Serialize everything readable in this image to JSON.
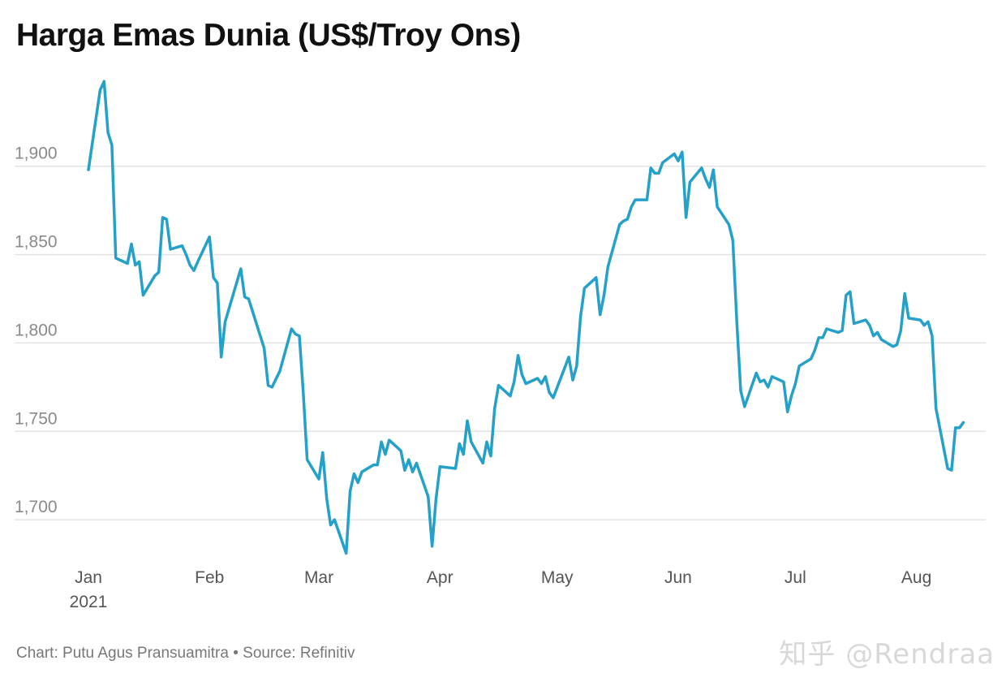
{
  "title": "Harga Emas Dunia (US$/Troy Ons)",
  "footer": {
    "credit": "Chart: Putu Agus Pransuamitra",
    "separator": "•",
    "source": "Source: Refinitiv"
  },
  "watermark": "知乎 @Rendraa",
  "chart_data": {
    "type": "line",
    "title": "Harga Emas Dunia (US$/Troy Ons)",
    "xlabel": "",
    "ylabel": "",
    "ylim": [
      1678,
      1955
    ],
    "yticks": [
      1700,
      1750,
      1800,
      1850,
      1900
    ],
    "ytick_labels": [
      "1,700",
      "1,750",
      "1,800",
      "1,850",
      "1,900"
    ],
    "xlim": [
      "2021-01-01",
      "2021-08-15"
    ],
    "xticks": [
      {
        "date": "2021-01-01",
        "label": "Jan",
        "sublabel": "2021"
      },
      {
        "date": "2021-02-01",
        "label": "Feb",
        "sublabel": ""
      },
      {
        "date": "2021-03-01",
        "label": "Mar",
        "sublabel": ""
      },
      {
        "date": "2021-04-01",
        "label": "Apr",
        "sublabel": ""
      },
      {
        "date": "2021-05-01",
        "label": "May",
        "sublabel": ""
      },
      {
        "date": "2021-06-01",
        "label": "Jun",
        "sublabel": ""
      },
      {
        "date": "2021-07-01",
        "label": "Jul",
        "sublabel": ""
      },
      {
        "date": "2021-08-01",
        "label": "Aug",
        "sublabel": ""
      }
    ],
    "grid": true,
    "line_color": "#24a0c9",
    "series": [
      {
        "name": "",
        "points": [
          [
            "2021-01-01",
            1898
          ],
          [
            "2021-01-04",
            1943
          ],
          [
            "2021-01-05",
            1948
          ],
          [
            "2021-01-06",
            1919
          ],
          [
            "2021-01-07",
            1912
          ],
          [
            "2021-01-08",
            1848
          ],
          [
            "2021-01-11",
            1845
          ],
          [
            "2021-01-12",
            1856
          ],
          [
            "2021-01-13",
            1844
          ],
          [
            "2021-01-14",
            1846
          ],
          [
            "2021-01-15",
            1827
          ],
          [
            "2021-01-18",
            1838
          ],
          [
            "2021-01-19",
            1840
          ],
          [
            "2021-01-20",
            1871
          ],
          [
            "2021-01-21",
            1870
          ],
          [
            "2021-01-22",
            1853
          ],
          [
            "2021-01-25",
            1855
          ],
          [
            "2021-01-26",
            1850
          ],
          [
            "2021-01-27",
            1844
          ],
          [
            "2021-01-28",
            1841
          ],
          [
            "2021-01-29",
            1846
          ],
          [
            "2021-02-01",
            1860
          ],
          [
            "2021-02-02",
            1837
          ],
          [
            "2021-02-03",
            1834
          ],
          [
            "2021-02-04",
            1792
          ],
          [
            "2021-02-05",
            1812
          ],
          [
            "2021-02-09",
            1842
          ],
          [
            "2021-02-10",
            1826
          ],
          [
            "2021-02-11",
            1825
          ],
          [
            "2021-02-12",
            1818
          ],
          [
            "2021-02-15",
            1797
          ],
          [
            "2021-02-16",
            1776
          ],
          [
            "2021-02-17",
            1775
          ],
          [
            "2021-02-19",
            1784
          ],
          [
            "2021-02-22",
            1808
          ],
          [
            "2021-02-23",
            1805
          ],
          [
            "2021-02-24",
            1804
          ],
          [
            "2021-02-25",
            1772
          ],
          [
            "2021-02-26",
            1734
          ],
          [
            "2021-03-01",
            1723
          ],
          [
            "2021-03-02",
            1738
          ],
          [
            "2021-03-03",
            1712
          ],
          [
            "2021-03-04",
            1697
          ],
          [
            "2021-03-05",
            1700
          ],
          [
            "2021-03-08",
            1681
          ],
          [
            "2021-03-09",
            1716
          ],
          [
            "2021-03-10",
            1726
          ],
          [
            "2021-03-11",
            1721
          ],
          [
            "2021-03-12",
            1727
          ],
          [
            "2021-03-15",
            1731
          ],
          [
            "2021-03-16",
            1731
          ],
          [
            "2021-03-17",
            1744
          ],
          [
            "2021-03-18",
            1737
          ],
          [
            "2021-03-19",
            1745
          ],
          [
            "2021-03-22",
            1739
          ],
          [
            "2021-03-23",
            1728
          ],
          [
            "2021-03-24",
            1734
          ],
          [
            "2021-03-25",
            1727
          ],
          [
            "2021-03-26",
            1732
          ],
          [
            "2021-03-29",
            1713
          ],
          [
            "2021-03-30",
            1685
          ],
          [
            "2021-03-31",
            1712
          ],
          [
            "2021-04-01",
            1730
          ],
          [
            "2021-04-05",
            1729
          ],
          [
            "2021-04-06",
            1743
          ],
          [
            "2021-04-07",
            1737
          ],
          [
            "2021-04-08",
            1756
          ],
          [
            "2021-04-09",
            1744
          ],
          [
            "2021-04-12",
            1732
          ],
          [
            "2021-04-13",
            1744
          ],
          [
            "2021-04-14",
            1736
          ],
          [
            "2021-04-15",
            1763
          ],
          [
            "2021-04-16",
            1776
          ],
          [
            "2021-04-19",
            1770
          ],
          [
            "2021-04-20",
            1778
          ],
          [
            "2021-04-21",
            1793
          ],
          [
            "2021-04-22",
            1782
          ],
          [
            "2021-04-23",
            1777
          ],
          [
            "2021-04-26",
            1780
          ],
          [
            "2021-04-27",
            1777
          ],
          [
            "2021-04-28",
            1781
          ],
          [
            "2021-04-29",
            1772
          ],
          [
            "2021-04-30",
            1769
          ],
          [
            "2021-05-04",
            1792
          ],
          [
            "2021-05-05",
            1779
          ],
          [
            "2021-05-06",
            1787
          ],
          [
            "2021-05-07",
            1815
          ],
          [
            "2021-05-08",
            1831
          ],
          [
            "2021-05-11",
            1837
          ],
          [
            "2021-05-12",
            1816
          ],
          [
            "2021-05-13",
            1827
          ],
          [
            "2021-05-14",
            1843
          ],
          [
            "2021-05-17",
            1867
          ],
          [
            "2021-05-18",
            1869
          ],
          [
            "2021-05-19",
            1870
          ],
          [
            "2021-05-20",
            1877
          ],
          [
            "2021-05-21",
            1881
          ],
          [
            "2021-05-24",
            1881
          ],
          [
            "2021-05-25",
            1899
          ],
          [
            "2021-05-26",
            1896
          ],
          [
            "2021-05-27",
            1896
          ],
          [
            "2021-05-28",
            1902
          ],
          [
            "2021-05-31",
            1907
          ],
          [
            "2021-06-01",
            1903
          ],
          [
            "2021-06-02",
            1908
          ],
          [
            "2021-06-03",
            1871
          ],
          [
            "2021-06-04",
            1891
          ],
          [
            "2021-06-07",
            1899
          ],
          [
            "2021-06-08",
            1893
          ],
          [
            "2021-06-09",
            1888
          ],
          [
            "2021-06-10",
            1898
          ],
          [
            "2021-06-11",
            1877
          ],
          [
            "2021-06-14",
            1867
          ],
          [
            "2021-06-15",
            1858
          ],
          [
            "2021-06-16",
            1812
          ],
          [
            "2021-06-17",
            1773
          ],
          [
            "2021-06-18",
            1764
          ],
          [
            "2021-06-21",
            1783
          ],
          [
            "2021-06-22",
            1778
          ],
          [
            "2021-06-23",
            1779
          ],
          [
            "2021-06-24",
            1775
          ],
          [
            "2021-06-25",
            1781
          ],
          [
            "2021-06-28",
            1778
          ],
          [
            "2021-06-29",
            1761
          ],
          [
            "2021-06-30",
            1770
          ],
          [
            "2021-07-01",
            1777
          ],
          [
            "2021-07-02",
            1787
          ],
          [
            "2021-07-05",
            1791
          ],
          [
            "2021-07-06",
            1796
          ],
          [
            "2021-07-07",
            1803
          ],
          [
            "2021-07-08",
            1803
          ],
          [
            "2021-07-09",
            1808
          ],
          [
            "2021-07-12",
            1806
          ],
          [
            "2021-07-13",
            1807
          ],
          [
            "2021-07-14",
            1827
          ],
          [
            "2021-07-15",
            1829
          ],
          [
            "2021-07-16",
            1811
          ],
          [
            "2021-07-19",
            1813
          ],
          [
            "2021-07-20",
            1810
          ],
          [
            "2021-07-21",
            1804
          ],
          [
            "2021-07-22",
            1806
          ],
          [
            "2021-07-23",
            1802
          ],
          [
            "2021-07-26",
            1798
          ],
          [
            "2021-07-27",
            1799
          ],
          [
            "2021-07-28",
            1807
          ],
          [
            "2021-07-29",
            1828
          ],
          [
            "2021-07-30",
            1814
          ],
          [
            "2021-08-02",
            1813
          ],
          [
            "2021-08-03",
            1810
          ],
          [
            "2021-08-04",
            1812
          ],
          [
            "2021-08-05",
            1804
          ],
          [
            "2021-08-06",
            1763
          ],
          [
            "2021-08-09",
            1729
          ],
          [
            "2021-08-10",
            1728
          ],
          [
            "2021-08-11",
            1752
          ],
          [
            "2021-08-12",
            1752
          ],
          [
            "2021-08-13",
            1755
          ]
        ]
      }
    ]
  }
}
